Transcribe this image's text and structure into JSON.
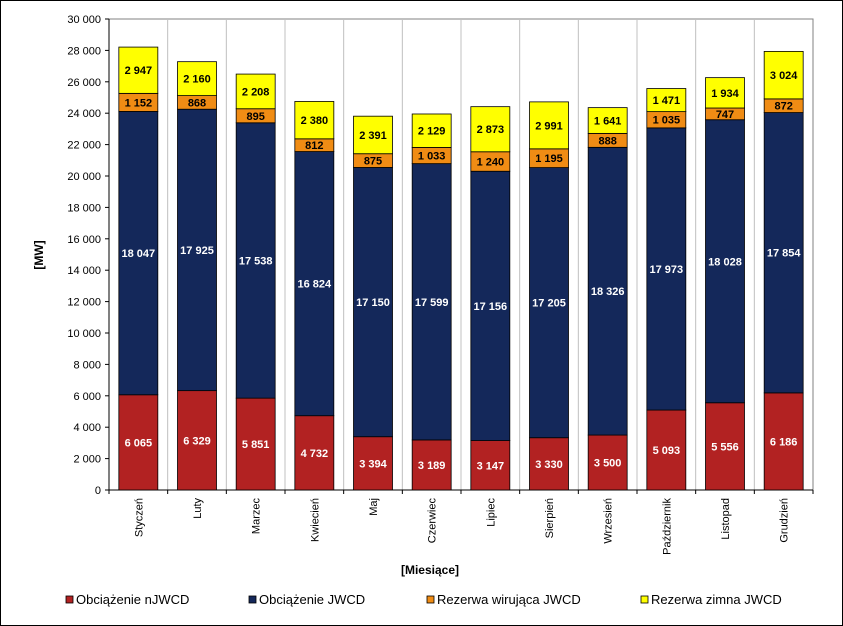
{
  "chart_data": {
    "type": "bar",
    "stacked": true,
    "title": "",
    "xlabel": "[Miesiące]",
    "ylabel": "[MW]",
    "ylim": [
      0,
      30000
    ],
    "ytick_step": 2000,
    "ytick_labels": [
      "0",
      "2 000",
      "4 000",
      "6 000",
      "8 000",
      "10 000",
      "12 000",
      "14 000",
      "16 000",
      "18 000",
      "20 000",
      "22 000",
      "24 000",
      "26 000",
      "28 000",
      "30 000"
    ],
    "grid": false,
    "legend_position": "bottom",
    "categories": [
      "Styczeń",
      "Luty",
      "Marzec",
      "Kwiecień",
      "Maj",
      "Czerwiec",
      "Lipiec",
      "Sierpień",
      "Wrzesień",
      "Październik",
      "Listopad",
      "Grudzień"
    ],
    "series": [
      {
        "name": "Obciążenie nJWCD",
        "color": "#B22222",
        "label_color": "#ffffff",
        "values": [
          6065,
          6329,
          5851,
          4732,
          3394,
          3189,
          3147,
          3330,
          3500,
          5093,
          5556,
          6186
        ],
        "labels": [
          "6 065",
          "6 329",
          "5 851",
          "4 732",
          "3 394",
          "3 189",
          "3 147",
          "3 330",
          "3 500",
          "5 093",
          "5 556",
          "6 186"
        ]
      },
      {
        "name": "Obciążenie JWCD",
        "color": "#14285A",
        "label_color": "#ffffff",
        "values": [
          18047,
          17925,
          17538,
          16824,
          17150,
          17599,
          17156,
          17205,
          18326,
          17973,
          18028,
          17854
        ],
        "labels": [
          "18 047",
          "17 925",
          "17 538",
          "16 824",
          "17 150",
          "17 599",
          "17 156",
          "17 205",
          "18 326",
          "17 973",
          "18 028",
          "17 854"
        ]
      },
      {
        "name": "Rezerwa wirująca JWCD",
        "color": "#F08C14",
        "label_color": "#000000",
        "values": [
          1152,
          868,
          895,
          812,
          875,
          1033,
          1240,
          1195,
          888,
          1035,
          747,
          872
        ],
        "labels": [
          "1 152",
          "868",
          "895",
          "812",
          "875",
          "1 033",
          "1 240",
          "1 195",
          "888",
          "1 035",
          "747",
          "872"
        ]
      },
      {
        "name": "Rezerwa zimna JWCD",
        "color": "#FFFF00",
        "label_color": "#000000",
        "values": [
          2947,
          2160,
          2208,
          2380,
          2391,
          2129,
          2873,
          2991,
          1641,
          1471,
          1934,
          3024
        ],
        "labels": [
          "2 947",
          "2 160",
          "2 208",
          "2 380",
          "2 391",
          "2 129",
          "2 873",
          "2 991",
          "1 641",
          "1 471",
          "1 934",
          "3 024"
        ]
      }
    ]
  }
}
